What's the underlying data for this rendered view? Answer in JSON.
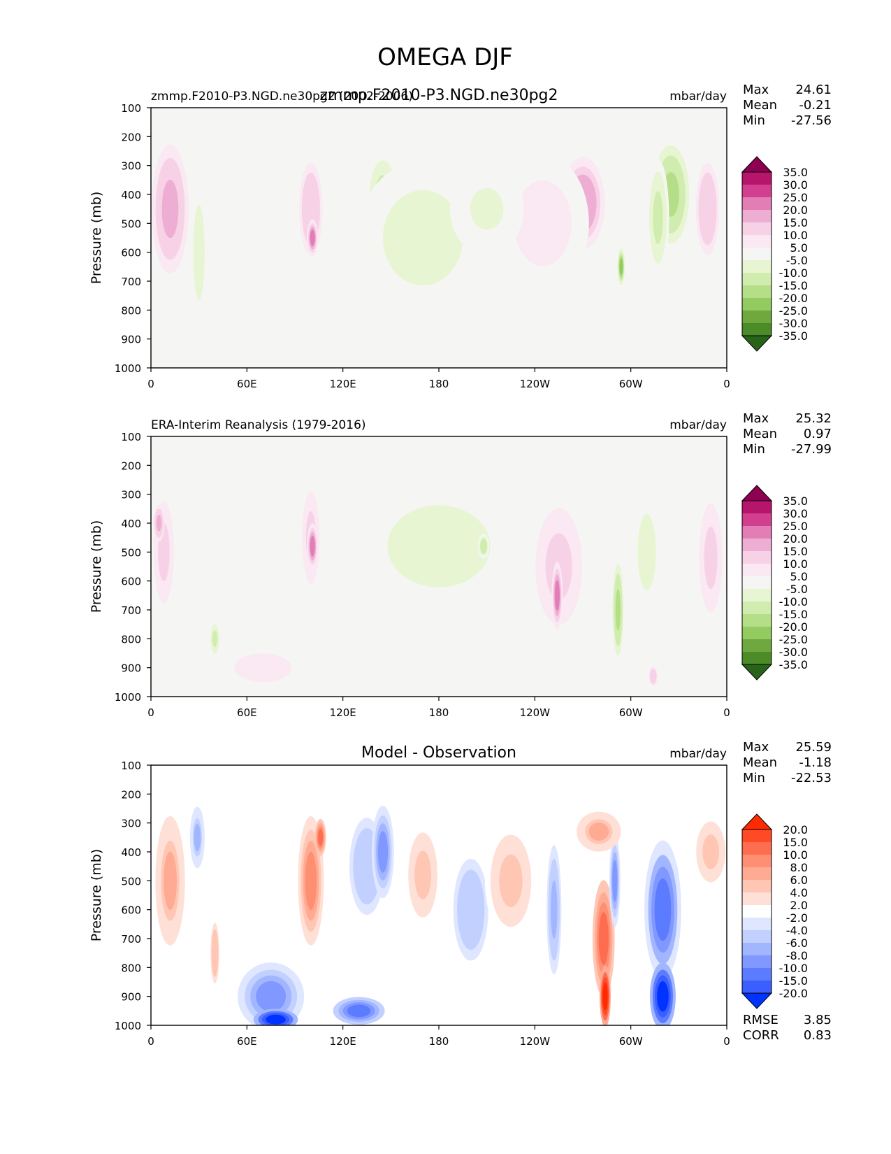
{
  "page": {
    "suptitle": "OMEGA DJF"
  },
  "axes_common": {
    "ylabel": "Pressure (mb)",
    "yticks": [
      "100",
      "200",
      "300",
      "400",
      "500",
      "600",
      "700",
      "800",
      "900",
      "1000"
    ],
    "xticks": [
      "0",
      "60E",
      "120E",
      "180",
      "120W",
      "60W",
      "0"
    ]
  },
  "chart_data": [
    {
      "type": "heatmap",
      "panel": "test",
      "title_left": "zmmp.F2010-P3.NGD.ne30pg2 (2002-2006)",
      "title_center": "zmmp.F2010-P3.NGD.ne30pg2",
      "units": "mbar/day",
      "stats": {
        "Max": "24.61",
        "Mean": "-0.21",
        "Min": "-27.56"
      },
      "colorbar_labels": [
        "35.0",
        "30.0",
        "25.0",
        "20.0",
        "15.0",
        "10.0",
        "5.0",
        "-5.0",
        "-10.0",
        "-15.0",
        "-20.0",
        "-25.0",
        "-30.0",
        "-35.0"
      ],
      "colormap": [
        "#8e0152",
        "#b7146b",
        "#d33f8f",
        "#e27db5",
        "#eeaed3",
        "#f7d2e7",
        "#fae8f2",
        "#f5f6f4",
        "#e7f5d3",
        "#d0ecae",
        "#b5de88",
        "#93cb60",
        "#6ea83e",
        "#4b8b28",
        "#276419"
      ],
      "xlim": [
        0,
        360
      ],
      "ylim": [
        1000,
        100
      ],
      "blobs": [
        {
          "lon": 12,
          "p": 450,
          "w": 10,
          "h": 420,
          "v": 18
        },
        {
          "lon": 30,
          "p": 600,
          "w": 5,
          "h": 500,
          "v": -7
        },
        {
          "lon": 100,
          "p": 450,
          "w": 8,
          "h": 380,
          "v": 14
        },
        {
          "lon": 101,
          "p": 550,
          "w": 3,
          "h": 120,
          "v": 24
        },
        {
          "lon": 145,
          "p": 400,
          "w": 9,
          "h": 280,
          "v": -12
        },
        {
          "lon": 193,
          "p": 530,
          "w": 14,
          "h": 330,
          "v": -14
        },
        {
          "lon": 197,
          "p": 550,
          "w": 3,
          "h": 80,
          "v": -22
        },
        {
          "lon": 170,
          "p": 550,
          "w": 35,
          "h": 500,
          "v": -7
        },
        {
          "lon": 270,
          "p": 430,
          "w": 12,
          "h": 300,
          "v": 19
        },
        {
          "lon": 245,
          "p": 500,
          "w": 25,
          "h": 450,
          "v": 8
        },
        {
          "lon": 325,
          "p": 400,
          "w": 10,
          "h": 320,
          "v": -17
        },
        {
          "lon": 317,
          "p": 480,
          "w": 6,
          "h": 380,
          "v": -12
        },
        {
          "lon": 294,
          "p": 650,
          "w": 2,
          "h": 120,
          "v": -24
        },
        {
          "lon": 348,
          "p": 450,
          "w": 8,
          "h": 380,
          "v": 14
        },
        {
          "lon": 210,
          "p": 450,
          "w": 20,
          "h": 300,
          "v": -6
        }
      ]
    },
    {
      "type": "heatmap",
      "panel": "reference",
      "title_left": "ERA-Interim Reanalysis (1979-2016)",
      "units": "mbar/day",
      "stats": {
        "Max": "25.32",
        "Mean": "0.97",
        "Min": "-27.99"
      },
      "colorbar_labels": [
        "35.0",
        "30.0",
        "25.0",
        "20.0",
        "15.0",
        "10.0",
        "5.0",
        "-5.0",
        "-10.0",
        "-15.0",
        "-20.0",
        "-25.0",
        "-30.0",
        "-35.0"
      ],
      "colormap": [
        "#8e0152",
        "#b7146b",
        "#d33f8f",
        "#e27db5",
        "#eeaed3",
        "#f7d2e7",
        "#fae8f2",
        "#f5f6f4",
        "#e7f5d3",
        "#d0ecae",
        "#b5de88",
        "#93cb60",
        "#6ea83e",
        "#4b8b28",
        "#276419"
      ],
      "xlim": [
        0,
        360
      ],
      "ylim": [
        1000,
        100
      ],
      "blobs": [
        {
          "lon": 8,
          "p": 500,
          "w": 7,
          "h": 420,
          "v": 12
        },
        {
          "lon": 5,
          "p": 400,
          "w": 3,
          "h": 120,
          "v": 18
        },
        {
          "lon": 100,
          "p": 450,
          "w": 6,
          "h": 380,
          "v": 12
        },
        {
          "lon": 101,
          "p": 480,
          "w": 3,
          "h": 150,
          "v": 20
        },
        {
          "lon": 180,
          "p": 480,
          "w": 45,
          "h": 430,
          "v": -7
        },
        {
          "lon": 208,
          "p": 480,
          "w": 3,
          "h": 80,
          "v": -14
        },
        {
          "lon": 255,
          "p": 550,
          "w": 16,
          "h": 480,
          "v": 10
        },
        {
          "lon": 254,
          "p": 650,
          "w": 3,
          "h": 220,
          "v": 20
        },
        {
          "lon": 292,
          "p": 700,
          "w": 3,
          "h": 300,
          "v": -18
        },
        {
          "lon": 310,
          "p": 500,
          "w": 8,
          "h": 400,
          "v": -8
        },
        {
          "lon": 350,
          "p": 520,
          "w": 8,
          "h": 450,
          "v": 10
        },
        {
          "lon": 70,
          "p": 900,
          "w": 25,
          "h": 150,
          "v": 8
        },
        {
          "lon": 40,
          "p": 800,
          "w": 3,
          "h": 120,
          "v": -10
        },
        {
          "lon": 314,
          "p": 930,
          "w": 3,
          "h": 80,
          "v": 14
        }
      ]
    },
    {
      "type": "heatmap",
      "panel": "difference",
      "title_center": "Model - Observation",
      "units": "mbar/day",
      "stats": {
        "Max": "25.59",
        "Mean": "-1.18",
        "Min": "-22.53"
      },
      "metrics": {
        "RMSE": "3.85",
        "CORR": "0.83"
      },
      "colorbar_labels": [
        "20.0",
        "15.0",
        "10.0",
        "8.0",
        "6.0",
        "4.0",
        "2.0",
        "-2.0",
        "-4.0",
        "-6.0",
        "-8.0",
        "-10.0",
        "-15.0",
        "-20.0"
      ],
      "colormap": [
        "#ff2a00",
        "#ff4a26",
        "#ff6d50",
        "#ff8f73",
        "#ffab93",
        "#ffc6b4",
        "#ffe0d6",
        "#ffffff",
        "#dfe6ff",
        "#c2d0ff",
        "#a2b6ff",
        "#8098ff",
        "#5c7cff",
        "#3a5eff",
        "#0033ff"
      ],
      "xlim": [
        0,
        360
      ],
      "ylim": [
        1000,
        100
      ],
      "blobs": [
        {
          "lon": 12,
          "p": 500,
          "w": 8,
          "h": 420,
          "v": 6
        },
        {
          "lon": 29,
          "p": 350,
          "w": 4,
          "h": 200,
          "v": -6
        },
        {
          "lon": 40,
          "p": 750,
          "w": 3,
          "h": 250,
          "v": 5
        },
        {
          "lon": 100,
          "p": 500,
          "w": 7,
          "h": 420,
          "v": 8
        },
        {
          "lon": 106,
          "p": 350,
          "w": 3,
          "h": 120,
          "v": 12
        },
        {
          "lon": 135,
          "p": 450,
          "w": 12,
          "h": 400,
          "v": -5
        },
        {
          "lon": 145,
          "p": 400,
          "w": 6,
          "h": 300,
          "v": -8
        },
        {
          "lon": 75,
          "p": 900,
          "w": 18,
          "h": 220,
          "v": -9
        },
        {
          "lon": 78,
          "p": 980,
          "w": 12,
          "h": 70,
          "v": -20
        },
        {
          "lon": 130,
          "p": 950,
          "w": 14,
          "h": 90,
          "v": -12
        },
        {
          "lon": 170,
          "p": 480,
          "w": 10,
          "h": 350,
          "v": 4
        },
        {
          "lon": 200,
          "p": 600,
          "w": 12,
          "h": 420,
          "v": -5
        },
        {
          "lon": 225,
          "p": 500,
          "w": 14,
          "h": 380,
          "v": 4
        },
        {
          "lon": 252,
          "p": 600,
          "w": 4,
          "h": 420,
          "v": -7
        },
        {
          "lon": 283,
          "p": 700,
          "w": 6,
          "h": 380,
          "v": 12
        },
        {
          "lon": 284,
          "p": 900,
          "w": 3,
          "h": 200,
          "v": 22
        },
        {
          "lon": 290,
          "p": 500,
          "w": 3,
          "h": 300,
          "v": -8
        },
        {
          "lon": 280,
          "p": 330,
          "w": 12,
          "h": 130,
          "v": 6
        },
        {
          "lon": 320,
          "p": 600,
          "w": 10,
          "h": 450,
          "v": -10
        },
        {
          "lon": 320,
          "p": 900,
          "w": 7,
          "h": 220,
          "v": -20
        },
        {
          "lon": 350,
          "p": 400,
          "w": 10,
          "h": 250,
          "v": 4
        }
      ]
    }
  ]
}
